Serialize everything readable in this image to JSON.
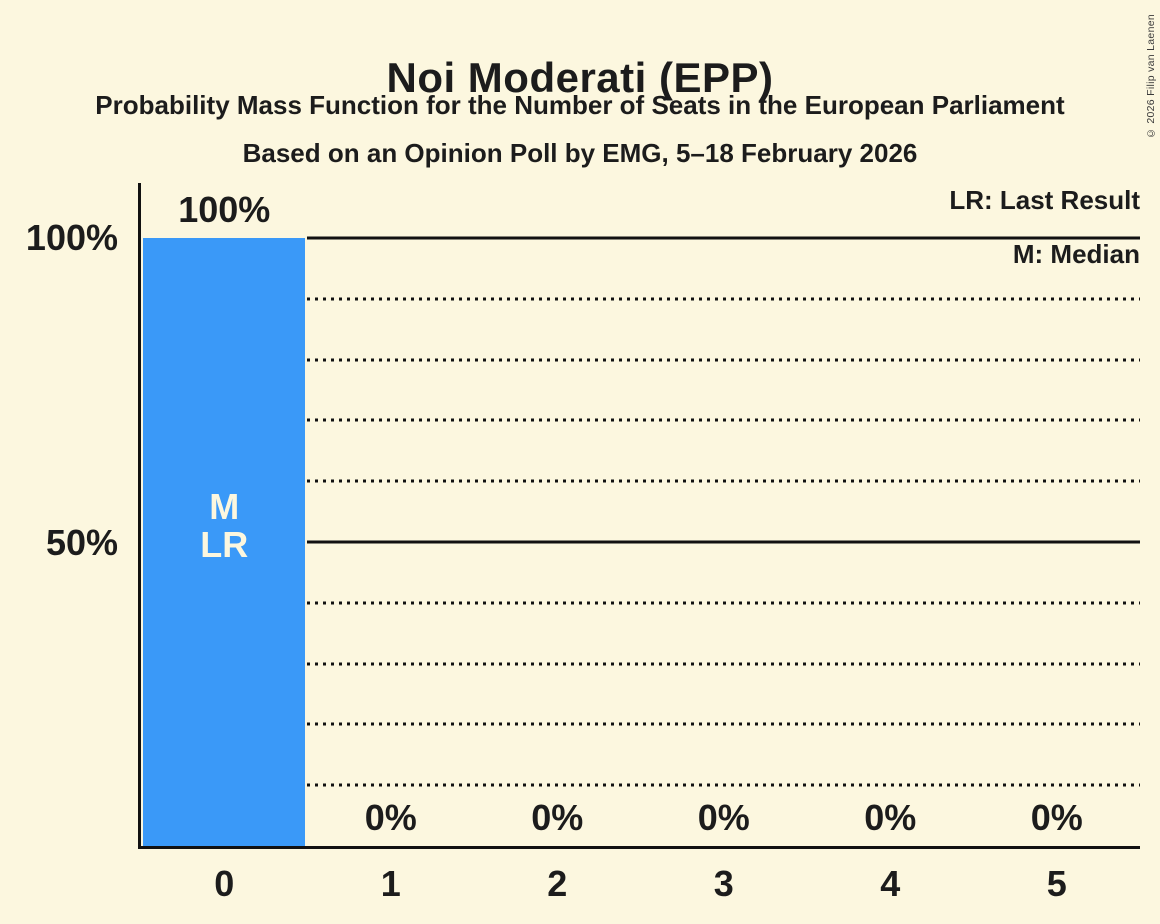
{
  "chart_data": {
    "type": "bar",
    "title": "Noi Moderati (EPP)",
    "subtitle": "Probability Mass Function for the Number of Seats in the European Parliament",
    "poll_line": "Based on an Opinion Poll by EMG, 5–18 February 2026",
    "categories": [
      "0",
      "1",
      "2",
      "3",
      "4",
      "5"
    ],
    "values": [
      100,
      0,
      0,
      0,
      0,
      0
    ],
    "bar_labels": [
      "100%",
      "0%",
      "0%",
      "0%",
      "0%",
      "0%"
    ],
    "y_ticks": [
      "100%",
      "50%"
    ],
    "ylim": [
      0,
      100
    ],
    "gridlines_pct": [
      100,
      90,
      80,
      70,
      60,
      50,
      40,
      30,
      20,
      10
    ],
    "solid_gridlines_pct": [
      100,
      50
    ],
    "legend": {
      "last_result": "LR: Last Result",
      "median": "M: Median"
    },
    "annotations": {
      "median": "M",
      "last_result": "LR",
      "annotated_category": "0"
    },
    "xlabel": "",
    "ylabel": ""
  },
  "copyright": "© 2026 Filip van Laenen",
  "colors": {
    "background": "#FCF7DF",
    "bar": "#3A99F8",
    "text": "#1C1C1C",
    "line": "#111111"
  }
}
